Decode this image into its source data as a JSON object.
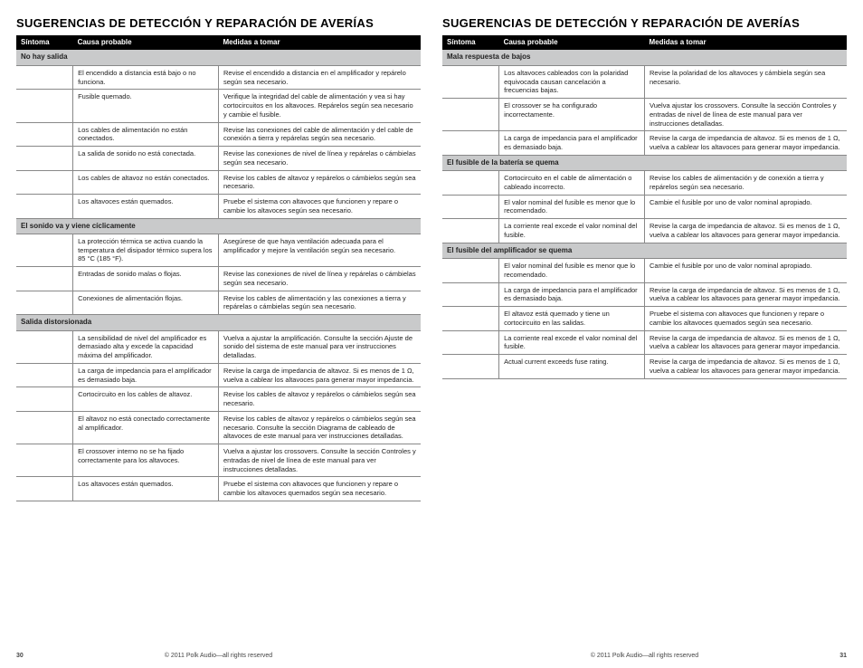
{
  "title": "SUGERENCIAS DE DETECCIÓN Y REPARACIÓN DE AVERÍAS",
  "headers": {
    "symptom": "Síntoma",
    "cause": "Causa probable",
    "action": "Medidas a tomar"
  },
  "copyright": "© 2011 Polk Audio—all rights reserved",
  "page_left_num": "30",
  "page_right_num": "31",
  "left": [
    {
      "type": "section",
      "label": "No hay salida"
    },
    {
      "cause": "El encendido a distancia está bajo o no funciona.",
      "action": "Revise el encendido a distancia en el amplificador y repárelo según sea necesario."
    },
    {
      "cause": "Fusible quemado.",
      "action": "Verifique la integridad del cable de alimentación y vea si hay cortocircuitos en los altavoces. Repárelos según sea necesario y cambie el fusible."
    },
    {
      "cause": "Los cables de alimentación no están conectados.",
      "action": "Revise las conexiones del cable de alimentación y del cable de conexión a tierra y repárelas según sea necesario."
    },
    {
      "cause": "La salida de sonido no está conectada.",
      "action": "Revise las conexiones de nivel de línea y repárelas o cámbielas según sea necesario."
    },
    {
      "cause": "Los cables de altavoz no están conectados.",
      "action": "Revise los cables de altavoz y repárelos o cámbielos según sea necesario."
    },
    {
      "cause": "Los altavoces están quemados.",
      "action": "Pruebe el sistema con altavoces que funcionen y repare o cambie los altavoces según sea necesario."
    },
    {
      "type": "section",
      "label": "El sonido va y viene cíclicamente"
    },
    {
      "cause": "La protección térmica se activa cuando la temperatura del disipador térmico supera los 85 °C (185 °F).",
      "action": "Asegúrese de que haya ventilación adecuada para el amplificador y mejore la ventilación según sea necesario."
    },
    {
      "cause": "Entradas de sonido malas o flojas.",
      "action": "Revise las conexiones de nivel de línea y repárelas o cámbielas según sea necesario."
    },
    {
      "cause": "Conexiones de alimentación flojas.",
      "action": "Revise los cables de alimentación y las conexiones a tierra y repárelas o cámbielas según sea necesario."
    },
    {
      "type": "section",
      "label": "Salida distorsionada"
    },
    {
      "cause": "La sensibilidad de nivel del amplificador es demasiado alta y excede la capacidad máxima del amplificador.",
      "action": "Vuelva a ajustar la amplificación. Consulte la sección Ajuste de sonido del sistema de este manual para ver instrucciones detalladas."
    },
    {
      "cause": "La carga de impedancia para el amplificador es demasiado baja.",
      "action": "Revise la carga de impedancia de altavoz. Si es menos de 1 Ω, vuelva a cablear los altavoces para generar mayor impedancia."
    },
    {
      "cause": "Cortocircuito en los cables de altavoz.",
      "action": "Revise los cables de altavoz y repárelos o cámbielos según sea necesario."
    },
    {
      "cause": "El altavoz no está conectado correctamente al amplificador.",
      "action": "Revise los cables de altavoz y repárelos o cámbielos según sea necesario. Consulte la sección Diagrama de cableado de altavoces de este manual para ver instrucciones detalladas."
    },
    {
      "cause": "El crossover interno no se ha fijado correctamente para los altavoces.",
      "action": "Vuelva a ajustar los crossovers. Consulte la sección Controles y entradas de nivel de línea de este manual para ver instrucciones detalladas."
    },
    {
      "cause": "Los altavoces están quemados.",
      "action": "Pruebe el sistema con altavoces que funcionen y repare o cambie los altavoces quemados según sea necesario."
    }
  ],
  "right": [
    {
      "type": "section",
      "label": "Mala respuesta de bajos"
    },
    {
      "cause": "Los altavoces cableados con la polaridad equivocada causan cancelación a frecuencias bajas.",
      "action": "Revise la polaridad de los altavoces y cámbiela según sea necesario."
    },
    {
      "cause": "El crossover se ha configurado incorrectamente.",
      "action": "Vuelva ajustar los crossovers. Consulte la sección Controles y entradas de nivel de línea de este manual para ver instrucciones detalladas."
    },
    {
      "cause": "La carga de impedancia para el amplificador es demasiado baja.",
      "action": "Revise la carga de impedancia de altavoz. Si es menos de 1 Ω, vuelva a cablear los altavoces para generar mayor impedancia."
    },
    {
      "type": "section",
      "label": "El fusible de la batería se quema"
    },
    {
      "cause": "Cortocircuito en el cable de alimentación o cableado incorrecto.",
      "action": "Revise los cables de alimentación y de conexión a tierra y repárelos según sea necesario."
    },
    {
      "cause": "El valor nominal del fusible es menor que lo recomendado.",
      "action": "Cambie el fusible por uno de valor nominal apropiado."
    },
    {
      "cause": "La corriente real excede el valor nominal del fusible.",
      "action": "Revise la carga de impedancia de altavoz. Si es menos de 1 Ω, vuelva a cablear los altavoces para generar mayor impedancia."
    },
    {
      "type": "section",
      "label": "El fusible del amplificador se quema"
    },
    {
      "cause": "El valor nominal del fusible es menor que lo recomendado.",
      "action": "Cambie el fusible por uno de valor nominal apropiado."
    },
    {
      "cause": "La carga de impedancia para el amplificador es demasiado baja.",
      "action": "Revise la carga de impedancia de altavoz. Si es menos de 1 Ω, vuelva a cablear los altavoces para generar mayor impedancia."
    },
    {
      "cause": "El altavoz está quemado y tiene un cortocircuito en las salidas.",
      "action": "Pruebe el sistema con altavoces que funcionen y repare o cambie los altavoces quemados según sea necesario."
    },
    {
      "cause": "La corriente real excede el valor nominal del fusible.",
      "action": "Revise la carga de impedancia de altavoz. Si es menos de 1 Ω, vuelva a cablear los altavoces para generar mayor impedancia."
    },
    {
      "cause": "Actual current exceeds fuse rating.",
      "action": "Revise la carga de impedancia de altavoz. Si es menos de 1 Ω, vuelva a cablear los altavoces para generar mayor impedancia."
    }
  ]
}
